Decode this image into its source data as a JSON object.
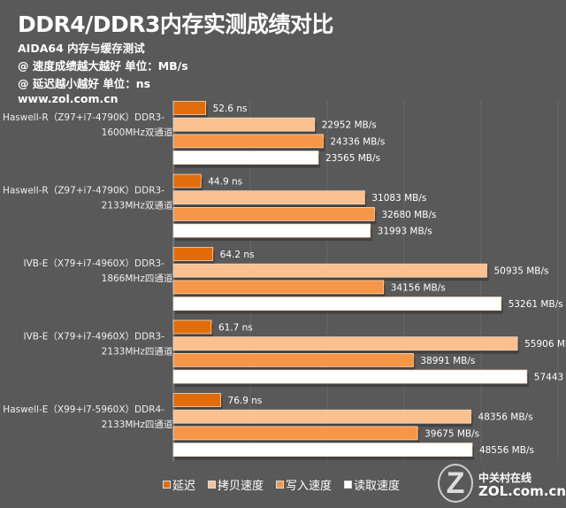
{
  "header": {
    "title": "DDR4/DDR3内存实测成绩对比",
    "lines": [
      "AIDA64 内存与缓存测试",
      "@ 速度成绩越大越好 单位：MB/s",
      "@ 延迟越小越好 单位：ns",
      "www.zol.com.cn"
    ]
  },
  "chart_data": {
    "type": "bar",
    "orientation": "horizontal",
    "title": "DDR4/DDR3内存实测成绩对比",
    "categories": [
      [
        "Haswell-R（Z97+i7-4790K）DDR3-",
        "1600MHz双通道"
      ],
      [
        "Haswell-R（Z97+i7-4790K）DDR3-",
        "2133MHz双通道"
      ],
      [
        "IVB-E（X79+i7-4960X）DDR3-",
        "1866MHz四通道"
      ],
      [
        "IVB-E（X79+i7-4960X）DDR3-",
        "2133MHz四通道"
      ],
      [
        "Haswell-E（X99+i7-5960X）DDR4-",
        "2133MHz四通道"
      ]
    ],
    "series": [
      {
        "name": "延迟",
        "unit": "ns",
        "color": "#E36C0A",
        "values": [
          52.6,
          44.9,
          64.2,
          61.7,
          76.9
        ]
      },
      {
        "name": "拷贝速度",
        "unit": "MB/s",
        "color": "#FAC090",
        "values": [
          22952,
          31083,
          50935,
          55906,
          48356
        ]
      },
      {
        "name": "写入速度",
        "unit": "MB/s",
        "color": "#F79646",
        "values": [
          24336,
          32680,
          34156,
          38991,
          39675
        ]
      },
      {
        "name": "读取速度",
        "unit": "MB/s",
        "color": "#FFFFFF",
        "values": [
          23565,
          31993,
          53261,
          57443,
          48556
        ]
      }
    ],
    "xlim_mbps": [
      0,
      62500
    ],
    "grid": true,
    "legend": "bottom"
  },
  "logo": {
    "name": "中关村在线",
    "domain": "ZOL.com.cn",
    "mark": "Z"
  }
}
